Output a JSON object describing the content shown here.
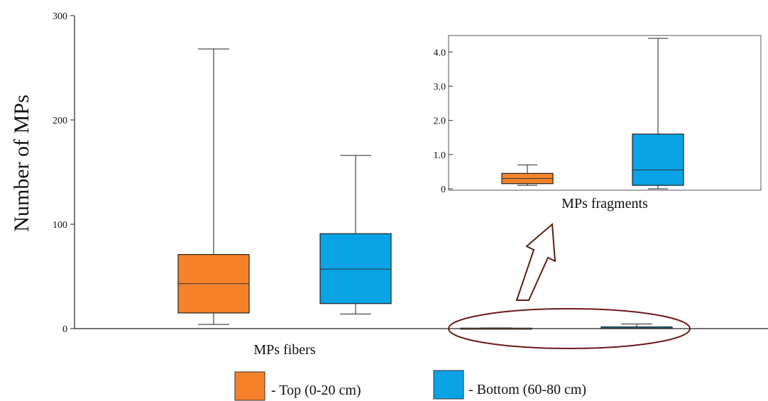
{
  "chart_data": [
    {
      "type": "box",
      "ylabel": "Number of MPs",
      "ylim": [
        0,
        300
      ],
      "yticks": [
        "0",
        "100",
        "200",
        "300"
      ],
      "categories": [
        "MPs fibers",
        "MPs fragments"
      ],
      "series": [
        {
          "name": "- Top (0-20 cm)",
          "color": "#f5822a",
          "boxes": [
            {
              "category": "MPs fibers",
              "min": 4,
              "q1": 15,
              "median": 43,
              "q3": 71,
              "max": 268
            },
            {
              "category": "MPs fragments",
              "min": 0.1,
              "q1": 0.15,
              "median": 0.3,
              "q3": 0.45,
              "max": 0.7
            }
          ]
        },
        {
          "name": "- Bottom (60-80 cm)",
          "color": "#0aa3e6",
          "boxes": [
            {
              "category": "MPs fibers",
              "min": 14,
              "q1": 24,
              "median": 57,
              "q3": 91,
              "max": 166
            },
            {
              "category": "MPs fragments",
              "min": 0,
              "q1": 0.1,
              "median": 0.55,
              "q3": 1.6,
              "max": 4.4
            }
          ]
        }
      ],
      "legend_position": "bottom"
    },
    {
      "type": "box",
      "inset": true,
      "xlabel": "MPs fragments",
      "ylim": [
        0,
        4.4
      ],
      "yticks": [
        "0",
        "1.0",
        "2.0",
        "3.0",
        "4.0"
      ],
      "series": [
        {
          "name": "Top",
          "color": "#f5822a",
          "min": 0.1,
          "q1": 0.15,
          "median": 0.3,
          "q3": 0.45,
          "max": 0.7
        },
        {
          "name": "Bottom",
          "color": "#0aa3e6",
          "min": 0,
          "q1": 0.1,
          "median": 0.55,
          "q3": 1.6,
          "max": 4.4
        }
      ]
    }
  ]
}
